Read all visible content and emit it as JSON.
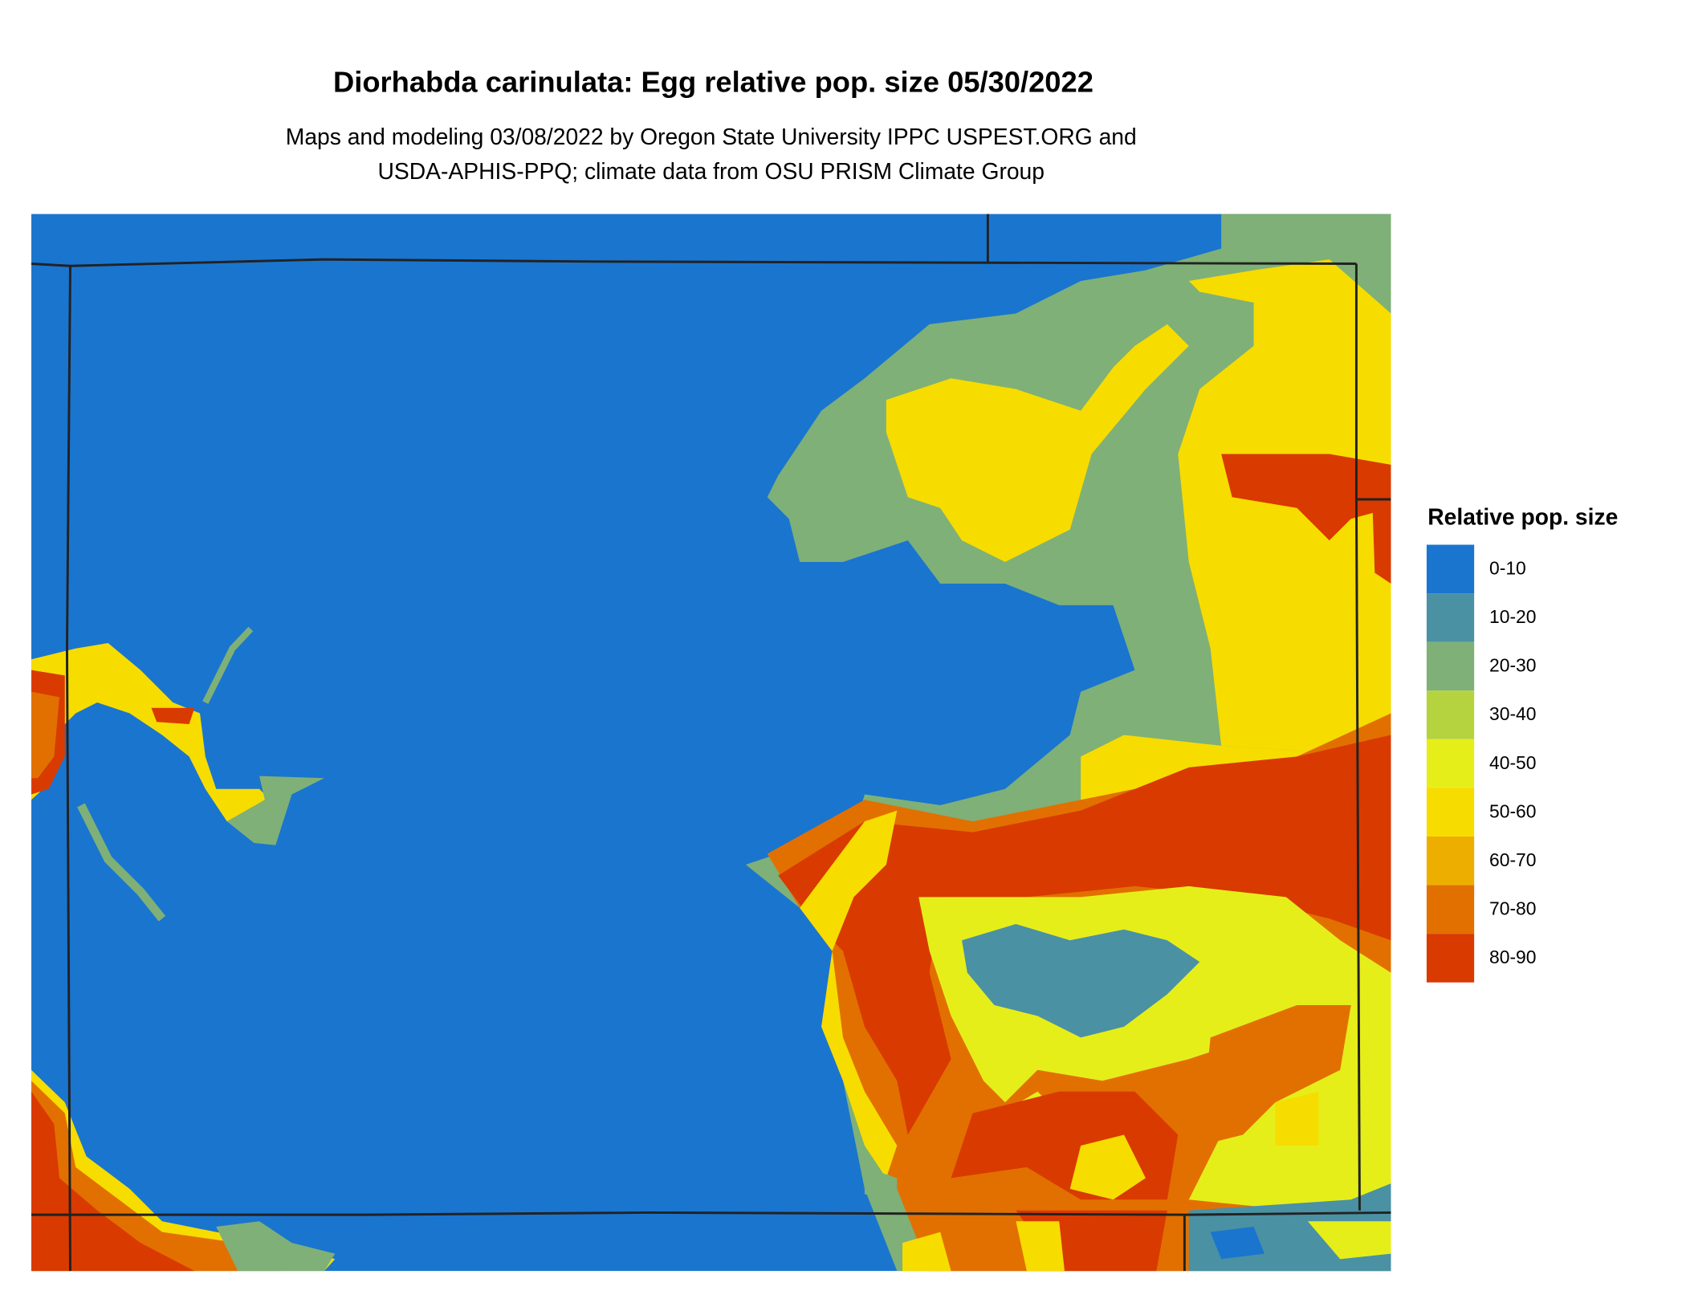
{
  "title": "Diorhabda carinulata: Egg relative pop. size 05/30/2022",
  "subtitle": [
    "Maps and modeling 03/08/2022 by Oregon State University IPPC USPEST.ORG and",
    "USDA-APHIS-PPQ; climate data from OSU PRISM Climate Group"
  ],
  "legend": {
    "title": "Relative pop. size",
    "items": [
      {
        "label": "0-10",
        "color": "#1a75cf"
      },
      {
        "label": "10-20",
        "color": "#4a91a4"
      },
      {
        "label": "20-30",
        "color": "#7fb077"
      },
      {
        "label": "30-40",
        "color": "#b4d33f"
      },
      {
        "label": "40-50",
        "color": "#e6ee1a"
      },
      {
        "label": "50-60",
        "color": "#f7dc00"
      },
      {
        "label": "60-70",
        "color": "#eeae00"
      },
      {
        "label": "70-80",
        "color": "#e27000"
      },
      {
        "label": "80-90",
        "color": "#d93a00"
      }
    ]
  }
}
